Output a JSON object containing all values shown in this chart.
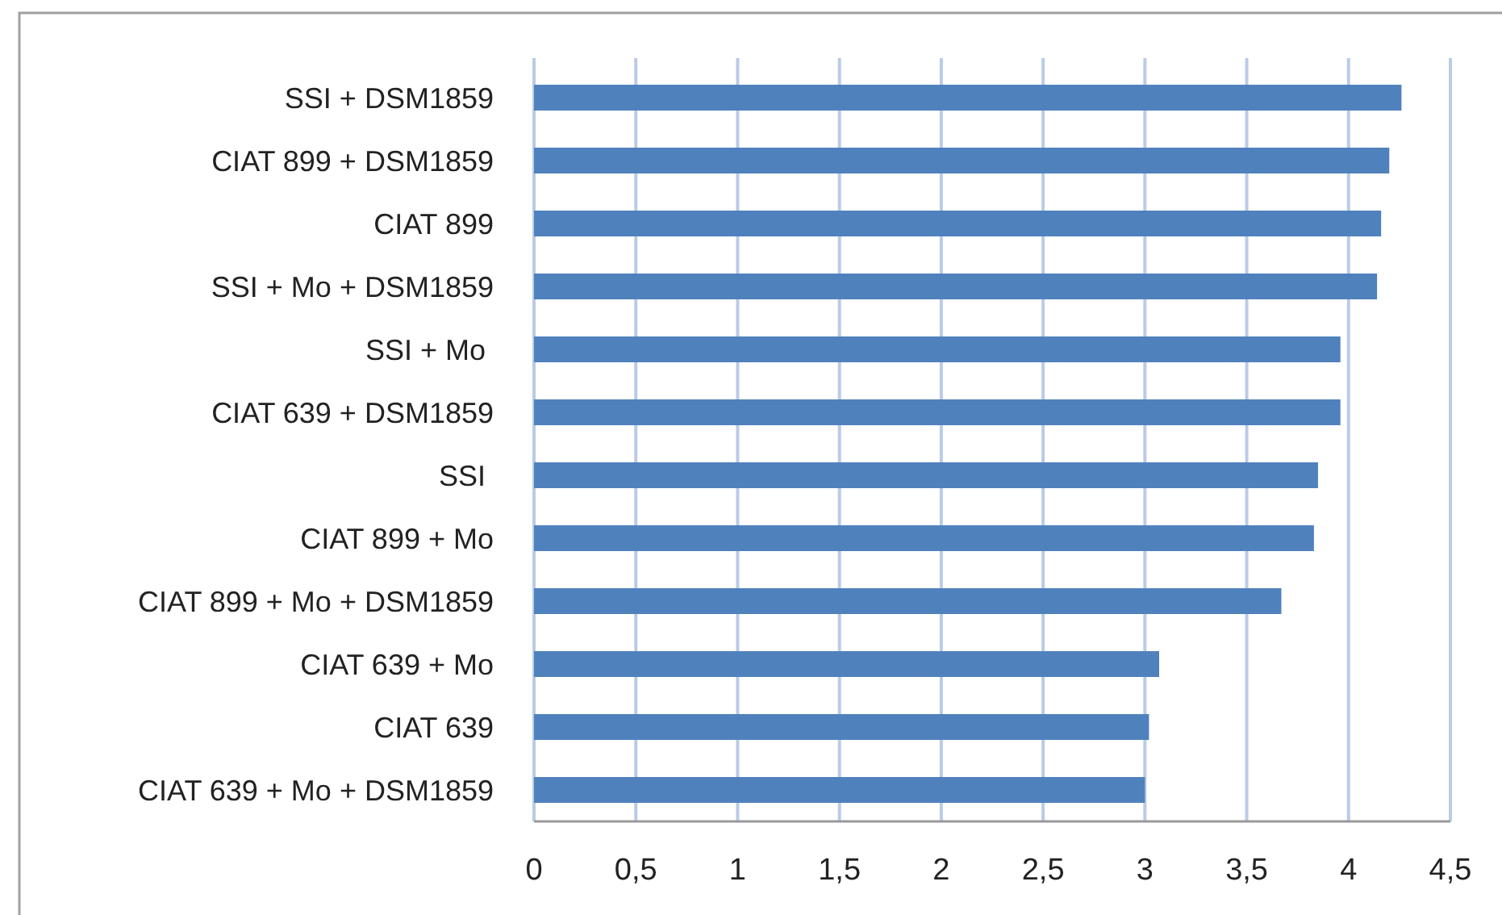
{
  "chart_data": {
    "type": "bar",
    "orientation": "horizontal",
    "categories": [
      "SSI + DSM1859",
      "CIAT 899 + DSM1859",
      "CIAT 899",
      "SSI + Mo + DSM1859",
      "SSI + Mo ",
      "CIAT 639 + DSM1859",
      "SSI ",
      "CIAT 899 + Mo",
      "CIAT 899 + Mo + DSM1859",
      "CIAT 639 + Mo",
      "CIAT 639",
      "CIAT 639 + Mo + DSM1859"
    ],
    "values": [
      4.26,
      4.2,
      4.16,
      4.14,
      3.96,
      3.96,
      3.85,
      3.83,
      3.67,
      3.07,
      3.02,
      3.0
    ],
    "color": "#4f81bd",
    "xlim": [
      0,
      4.5
    ],
    "xticks": [
      0,
      {
        "value": 0.5,
        "label": "0,5"
      },
      1,
      {
        "value": 1.5,
        "label": "1,5"
      },
      2,
      {
        "value": 2.5,
        "label": "2,5"
      },
      3,
      {
        "value": 3.5,
        "label": "3,5"
      },
      4,
      {
        "value": 4.5,
        "label": "4,5"
      }
    ],
    "grid": "x"
  }
}
